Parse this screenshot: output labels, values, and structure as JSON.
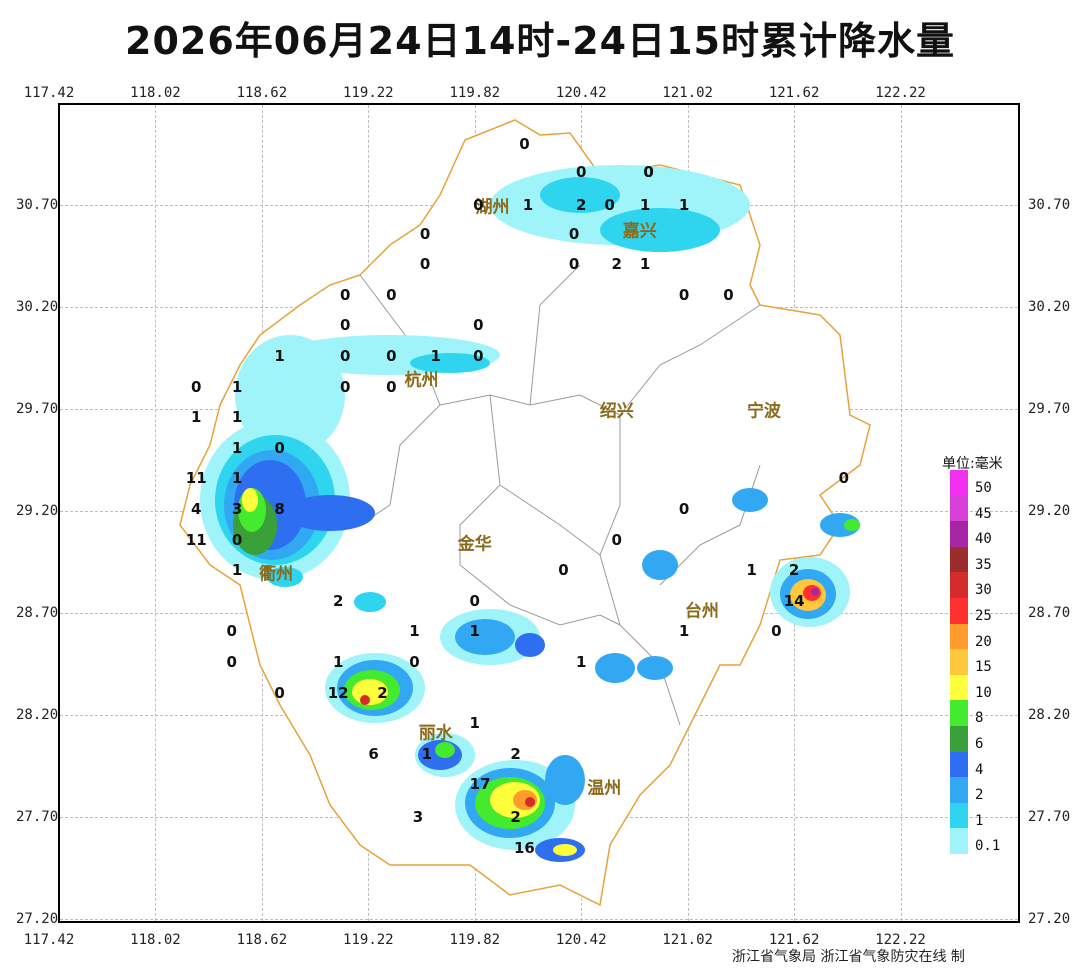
{
  "title": "2026年06月24日14时-24日15时累计降水量",
  "x_ticks": [
    "117.42",
    "118.02",
    "118.62",
    "119.22",
    "119.82",
    "120.42",
    "121.02",
    "121.62",
    "122.22"
  ],
  "y_ticks": [
    "30.70",
    "30.20",
    "29.70",
    "29.20",
    "28.70",
    "28.20",
    "27.70",
    "27.20"
  ],
  "cities": [
    {
      "name": "湖州",
      "lon": 119.92,
      "lat": 30.7
    },
    {
      "name": "嘉兴",
      "lon": 120.75,
      "lat": 30.58
    },
    {
      "name": "杭州",
      "lon": 119.52,
      "lat": 29.85
    },
    {
      "name": "绍兴",
      "lon": 120.62,
      "lat": 29.7
    },
    {
      "name": "宁波",
      "lon": 121.45,
      "lat": 29.7
    },
    {
      "name": "衢州",
      "lon": 118.7,
      "lat": 28.9
    },
    {
      "name": "金华",
      "lon": 119.82,
      "lat": 29.05
    },
    {
      "name": "台州",
      "lon": 121.1,
      "lat": 28.72
    },
    {
      "name": "丽水",
      "lon": 119.6,
      "lat": 28.12
    },
    {
      "name": "温州",
      "lon": 120.55,
      "lat": 27.85
    }
  ],
  "station_values": [
    {
      "v": "0",
      "lon": 120.1,
      "lat": 31.0
    },
    {
      "v": "0",
      "lon": 120.42,
      "lat": 30.86
    },
    {
      "v": "0",
      "lon": 120.8,
      "lat": 30.86
    },
    {
      "v": "0",
      "lon": 120.8,
      "lat": 30.86
    },
    {
      "v": "0",
      "lon": 119.84,
      "lat": 30.7
    },
    {
      "v": "1",
      "lon": 120.12,
      "lat": 30.7
    },
    {
      "v": "2",
      "lon": 120.42,
      "lat": 30.7
    },
    {
      "v": "0",
      "lon": 120.58,
      "lat": 30.7
    },
    {
      "v": "1",
      "lon": 120.78,
      "lat": 30.7
    },
    {
      "v": "1",
      "lon": 121.0,
      "lat": 30.7
    },
    {
      "v": "0",
      "lon": 120.38,
      "lat": 30.56
    },
    {
      "v": "0",
      "lon": 119.54,
      "lat": 30.56
    },
    {
      "v": "0",
      "lon": 119.54,
      "lat": 30.41
    },
    {
      "v": "0",
      "lon": 120.38,
      "lat": 30.41
    },
    {
      "v": "2",
      "lon": 120.62,
      "lat": 30.41
    },
    {
      "v": "1",
      "lon": 120.78,
      "lat": 30.41
    },
    {
      "v": "0",
      "lon": 119.09,
      "lat": 30.26
    },
    {
      "v": "0",
      "lon": 119.35,
      "lat": 30.26
    },
    {
      "v": "0",
      "lon": 121.0,
      "lat": 30.26
    },
    {
      "v": "0",
      "lon": 121.25,
      "lat": 30.26
    },
    {
      "v": "0",
      "lon": 119.09,
      "lat": 30.11
    },
    {
      "v": "0",
      "lon": 119.84,
      "lat": 30.11
    },
    {
      "v": "1",
      "lon": 118.72,
      "lat": 29.96
    },
    {
      "v": "0",
      "lon": 119.09,
      "lat": 29.96
    },
    {
      "v": "0",
      "lon": 119.35,
      "lat": 29.96
    },
    {
      "v": "1",
      "lon": 119.6,
      "lat": 29.96
    },
    {
      "v": "0",
      "lon": 119.84,
      "lat": 29.96
    },
    {
      "v": "0",
      "lon": 118.25,
      "lat": 29.81
    },
    {
      "v": "1",
      "lon": 118.48,
      "lat": 29.81
    },
    {
      "v": "0",
      "lon": 119.09,
      "lat": 29.81
    },
    {
      "v": "0",
      "lon": 119.35,
      "lat": 29.81
    },
    {
      "v": "1",
      "lon": 118.25,
      "lat": 29.66
    },
    {
      "v": "1",
      "lon": 118.48,
      "lat": 29.66
    },
    {
      "v": "1",
      "lon": 118.48,
      "lat": 29.51
    },
    {
      "v": "0",
      "lon": 118.72,
      "lat": 29.51
    },
    {
      "v": "11",
      "lon": 118.25,
      "lat": 29.36
    },
    {
      "v": "1",
      "lon": 118.48,
      "lat": 29.36
    },
    {
      "v": "4",
      "lon": 118.25,
      "lat": 29.21
    },
    {
      "v": "3",
      "lon": 118.48,
      "lat": 29.21
    },
    {
      "v": "8",
      "lon": 118.72,
      "lat": 29.21
    },
    {
      "v": "11",
      "lon": 118.25,
      "lat": 29.06
    },
    {
      "v": "0",
      "lon": 118.48,
      "lat": 29.06
    },
    {
      "v": "0",
      "lon": 121.9,
      "lat": 29.36
    },
    {
      "v": "0",
      "lon": 121.0,
      "lat": 29.21
    },
    {
      "v": "0",
      "lon": 120.62,
      "lat": 29.06
    },
    {
      "v": "0",
      "lon": 120.32,
      "lat": 28.91
    },
    {
      "v": "1",
      "lon": 121.38,
      "lat": 28.91
    },
    {
      "v": "2",
      "lon": 121.62,
      "lat": 28.91
    },
    {
      "v": "1",
      "lon": 118.48,
      "lat": 28.91
    },
    {
      "v": "2",
      "lon": 119.05,
      "lat": 28.76
    },
    {
      "v": "0",
      "lon": 119.82,
      "lat": 28.76
    },
    {
      "v": "14",
      "lon": 121.62,
      "lat": 28.76
    },
    {
      "v": "0",
      "lon": 118.45,
      "lat": 28.61
    },
    {
      "v": "1",
      "lon": 119.48,
      "lat": 28.61
    },
    {
      "v": "1",
      "lon": 119.82,
      "lat": 28.61
    },
    {
      "v": "1",
      "lon": 121.0,
      "lat": 28.61
    },
    {
      "v": "0",
      "lon": 121.52,
      "lat": 28.61
    },
    {
      "v": "0",
      "lon": 118.45,
      "lat": 28.46
    },
    {
      "v": "1",
      "lon": 119.05,
      "lat": 28.46
    },
    {
      "v": "0",
      "lon": 119.48,
      "lat": 28.46
    },
    {
      "v": "1",
      "lon": 120.42,
      "lat": 28.46
    },
    {
      "v": "0",
      "lon": 118.72,
      "lat": 28.31
    },
    {
      "v": "12",
      "lon": 119.05,
      "lat": 28.31
    },
    {
      "v": "2",
      "lon": 119.3,
      "lat": 28.31
    },
    {
      "v": "1",
      "lon": 119.82,
      "lat": 28.16
    },
    {
      "v": "6",
      "lon": 119.25,
      "lat": 28.01
    },
    {
      "v": "1",
      "lon": 119.55,
      "lat": 28.01
    },
    {
      "v": "2",
      "lon": 120.05,
      "lat": 28.01
    },
    {
      "v": "17",
      "lon": 119.85,
      "lat": 27.86
    },
    {
      "v": "3",
      "lon": 119.5,
      "lat": 27.7
    },
    {
      "v": "2",
      "lon": 120.05,
      "lat": 27.7
    },
    {
      "v": "16",
      "lon": 120.1,
      "lat": 27.55
    }
  ],
  "legend": {
    "unit": "单位:毫米",
    "levels": [
      {
        "label": "50",
        "color": "#f230f2"
      },
      {
        "label": "45",
        "color": "#d640d6"
      },
      {
        "label": "40",
        "color": "#a626a6"
      },
      {
        "label": "35",
        "color": "#9c2b2b"
      },
      {
        "label": "30",
        "color": "#d42b2b"
      },
      {
        "label": "25",
        "color": "#ff3030"
      },
      {
        "label": "20",
        "color": "#ff9c2b"
      },
      {
        "label": "15",
        "color": "#ffc83c"
      },
      {
        "label": "10",
        "color": "#ffff3c"
      },
      {
        "label": "8",
        "color": "#44ea2e"
      },
      {
        "label": "6",
        "color": "#3aa03a"
      },
      {
        "label": "4",
        "color": "#2e6ef0"
      },
      {
        "label": "2",
        "color": "#33a8f2"
      },
      {
        "label": "1",
        "color": "#2fd4ee"
      },
      {
        "label": "0.1",
        "color": "#9ef4f8"
      }
    ]
  },
  "credit": "浙江省气象局 浙江省气象防灾在线 制"
}
